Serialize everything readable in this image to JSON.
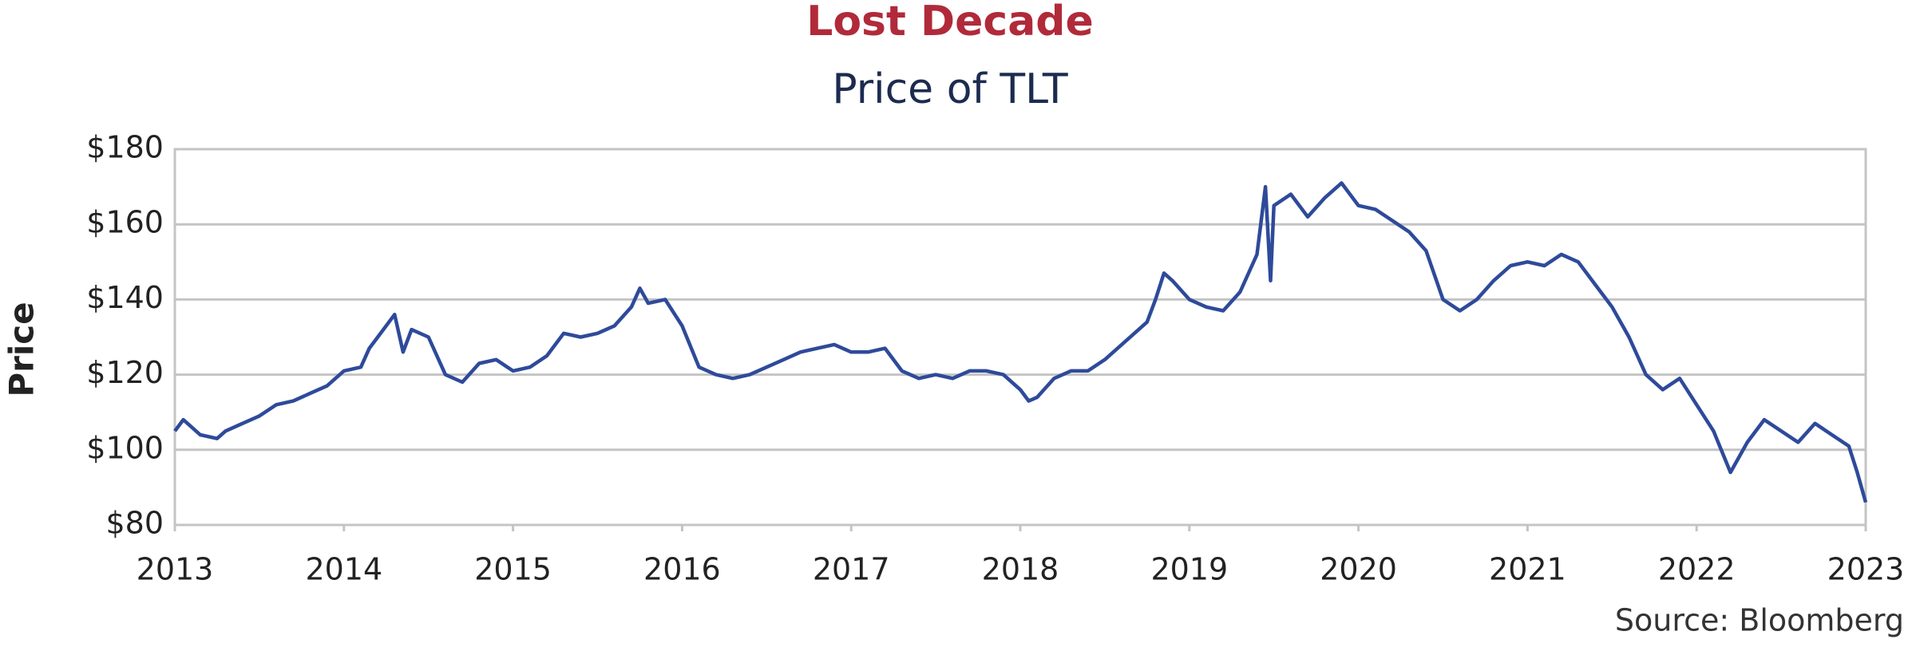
{
  "chart_data": {
    "type": "line",
    "title": "Lost Decade",
    "subtitle": "Price of TLT",
    "y_label": "Price",
    "source": "Source: Bloomberg",
    "title_color": "#b02a3a",
    "subtitle_color": "#1c2b4f",
    "grid": true,
    "xlim": [
      2013,
      2023
    ],
    "xticks": [
      2013,
      2014,
      2015,
      2016,
      2017,
      2018,
      2019,
      2020,
      2021,
      2022,
      2023
    ],
    "ylim": [
      80,
      180
    ],
    "yticks": [
      {
        "value": 80,
        "label": "$80"
      },
      {
        "value": 100,
        "label": "$100"
      },
      {
        "value": 120,
        "label": "$120"
      },
      {
        "value": 140,
        "label": "$140"
      },
      {
        "value": 160,
        "label": "$160"
      },
      {
        "value": 180,
        "label": "$180"
      }
    ],
    "x": [
      2013.0,
      2013.05,
      2013.15,
      2013.25,
      2013.3,
      2013.4,
      2013.5,
      2013.6,
      2013.7,
      2013.8,
      2013.9,
      2014.0,
      2014.1,
      2014.15,
      2014.2,
      2014.3,
      2014.35,
      2014.4,
      2014.5,
      2014.6,
      2014.7,
      2014.8,
      2014.9,
      2015.0,
      2015.1,
      2015.2,
      2015.3,
      2015.4,
      2015.5,
      2015.6,
      2015.7,
      2015.75,
      2015.8,
      2015.9,
      2016.0,
      2016.1,
      2016.2,
      2016.3,
      2016.4,
      2016.5,
      2016.6,
      2016.7,
      2016.8,
      2016.9,
      2017.0,
      2017.1,
      2017.2,
      2017.3,
      2017.4,
      2017.5,
      2017.6,
      2017.7,
      2017.8,
      2017.9,
      2018.0,
      2018.05,
      2018.1,
      2018.2,
      2018.3,
      2018.4,
      2018.5,
      2018.6,
      2018.7,
      2018.75,
      2018.8,
      2018.85,
      2018.9,
      2019.0,
      2019.1,
      2019.2,
      2019.3,
      2019.4,
      2019.45,
      2019.48,
      2019.5,
      2019.6,
      2019.7,
      2019.8,
      2019.9,
      2020.0,
      2020.1,
      2020.2,
      2020.3,
      2020.4,
      2020.5,
      2020.6,
      2020.7,
      2020.8,
      2020.9,
      2021.0,
      2021.1,
      2021.2,
      2021.3,
      2021.4,
      2021.5,
      2021.6,
      2021.7,
      2021.8,
      2021.9,
      2022.0,
      2022.1,
      2022.2,
      2022.3,
      2022.4,
      2022.5,
      2022.6,
      2022.7,
      2022.8,
      2022.9,
      2022.95,
      2023.0
    ],
    "series": [
      {
        "name": "TLT",
        "color": "#2e4a9a",
        "values": [
          105,
          108,
          104,
          103,
          105,
          107,
          109,
          112,
          113,
          115,
          117,
          121,
          122,
          127,
          130,
          136,
          126,
          132,
          130,
          120,
          118,
          123,
          124,
          121,
          122,
          125,
          131,
          130,
          131,
          133,
          138,
          143,
          139,
          140,
          133,
          122,
          120,
          119,
          120,
          122,
          124,
          126,
          127,
          128,
          126,
          126,
          127,
          121,
          119,
          120,
          119,
          121,
          121,
          120,
          116,
          113,
          114,
          119,
          121,
          121,
          124,
          128,
          132,
          134,
          140,
          147,
          145,
          140,
          138,
          137,
          142,
          152,
          170,
          145,
          165,
          168,
          162,
          167,
          171,
          165,
          164,
          161,
          158,
          153,
          140,
          137,
          140,
          145,
          149,
          150,
          149,
          152,
          150,
          144,
          138,
          130,
          120,
          116,
          119,
          112,
          105,
          94,
          102,
          108,
          105,
          102,
          107,
          104,
          101,
          94,
          86
        ]
      }
    ]
  }
}
